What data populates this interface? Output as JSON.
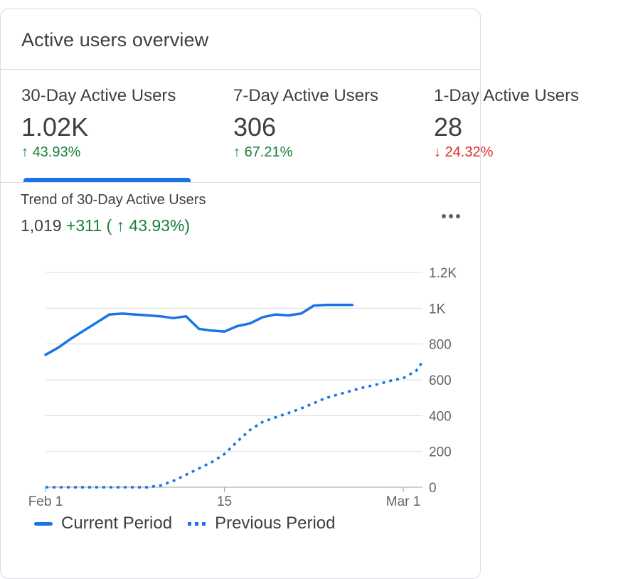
{
  "card": {
    "title": "Active users overview"
  },
  "metrics": [
    {
      "label": "30-Day Active Users",
      "value": "1.02K",
      "arrow": "↑",
      "change": "43.93%",
      "direction": "up"
    },
    {
      "label": "7-Day Active Users",
      "value": "306",
      "arrow": "↑",
      "change": "67.21%",
      "direction": "up"
    },
    {
      "label": "1-Day Active Users",
      "value": "28",
      "arrow": "↓",
      "change": "24.32%",
      "direction": "down"
    }
  ],
  "trend": {
    "title": "Trend of 30-Day Active Users",
    "total": "1,019",
    "delta": "+311",
    "pct_open": "(",
    "pct_arrow": "↑",
    "pct": "43.93%",
    "pct_close": ")"
  },
  "colors": {
    "accent": "#1a73e8",
    "up": "#188038",
    "down": "#d93025",
    "grid": "#dadce0"
  },
  "icons": {
    "more": "more-horizontal-icon"
  },
  "legend": {
    "current": "Current Period",
    "previous": "Previous Period"
  },
  "chart_data": {
    "type": "line",
    "x_ticks": [
      "Feb 1",
      "15",
      "Mar 1"
    ],
    "x_tick_days": [
      0,
      14,
      28
    ],
    "y_ticks": [
      "0",
      "200",
      "400",
      "600",
      "800",
      "1K",
      "1.2K"
    ],
    "ylim": [
      0,
      1200
    ],
    "xlim_days": [
      0,
      29.5
    ],
    "grid": true,
    "legend_position": "bottom",
    "series": [
      {
        "name": "Current Period",
        "style": "solid",
        "x": [
          0,
          1,
          2,
          3,
          4,
          5,
          6,
          7,
          8,
          9,
          10,
          11,
          12,
          13,
          14,
          15,
          16,
          17,
          18,
          19,
          20,
          21,
          22,
          23,
          24
        ],
        "y": [
          740,
          780,
          830,
          875,
          920,
          965,
          970,
          965,
          960,
          955,
          945,
          955,
          885,
          875,
          870,
          900,
          915,
          950,
          965,
          960,
          970,
          1015,
          1019,
          1019,
          1019
        ]
      },
      {
        "name": "Previous Period",
        "style": "dotted",
        "x": [
          0,
          1,
          2,
          3,
          4,
          5,
          6,
          7,
          8,
          9,
          10,
          11,
          12,
          13,
          14,
          15,
          16,
          17,
          18,
          19,
          20,
          21,
          22,
          23,
          24,
          25,
          26,
          27,
          28,
          29,
          29.5
        ],
        "y": [
          0,
          0,
          0,
          0,
          0,
          0,
          0,
          0,
          0,
          10,
          35,
          70,
          105,
          140,
          185,
          255,
          320,
          365,
          390,
          415,
          440,
          470,
          500,
          520,
          540,
          560,
          575,
          595,
          610,
          650,
          700
        ]
      }
    ]
  }
}
